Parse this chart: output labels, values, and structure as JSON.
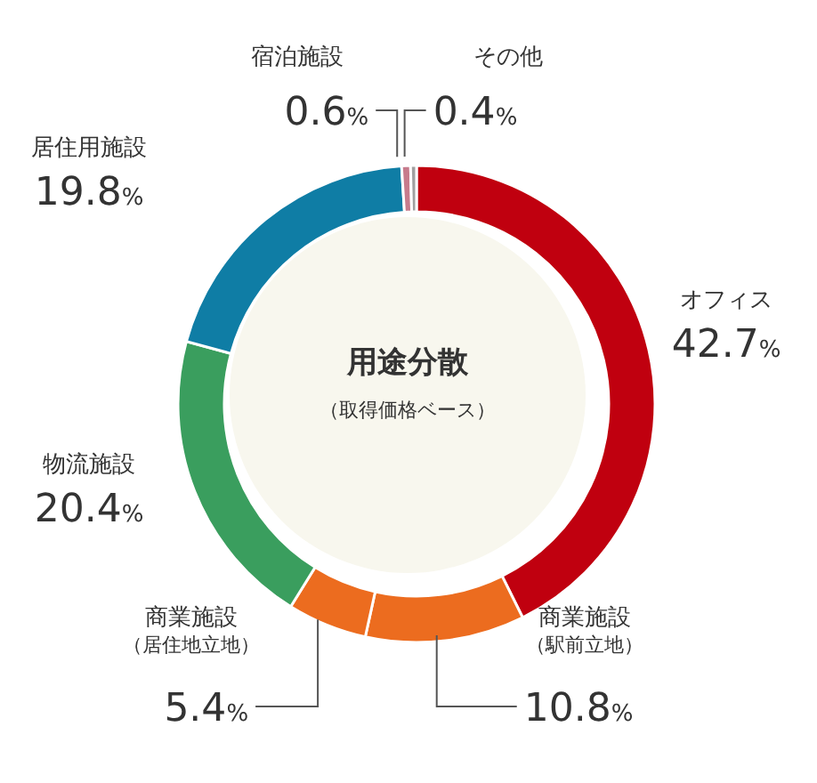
{
  "chart_data": {
    "type": "donut",
    "title": "用途分散",
    "subtitle": "（取得価格ベース）",
    "categories": [
      "オフィス",
      "商業施設（駅前立地）",
      "商業施設（居住地立地）",
      "物流施設",
      "居住用施設",
      "宿泊施設",
      "その他"
    ],
    "values": [
      42.7,
      10.8,
      5.4,
      20.4,
      19.8,
      0.6,
      0.4
    ],
    "value_labels": [
      "42.7%",
      "10.8%",
      "5.4%",
      "20.4%",
      "19.8%",
      "0.6%",
      "0.4%"
    ],
    "colors": [
      "#c0000f",
      "#ec6c1f",
      "#ec6c1f",
      "#3a9e5e",
      "#0f7da5",
      "#c77b8c",
      "#a0a0a0"
    ]
  }
}
